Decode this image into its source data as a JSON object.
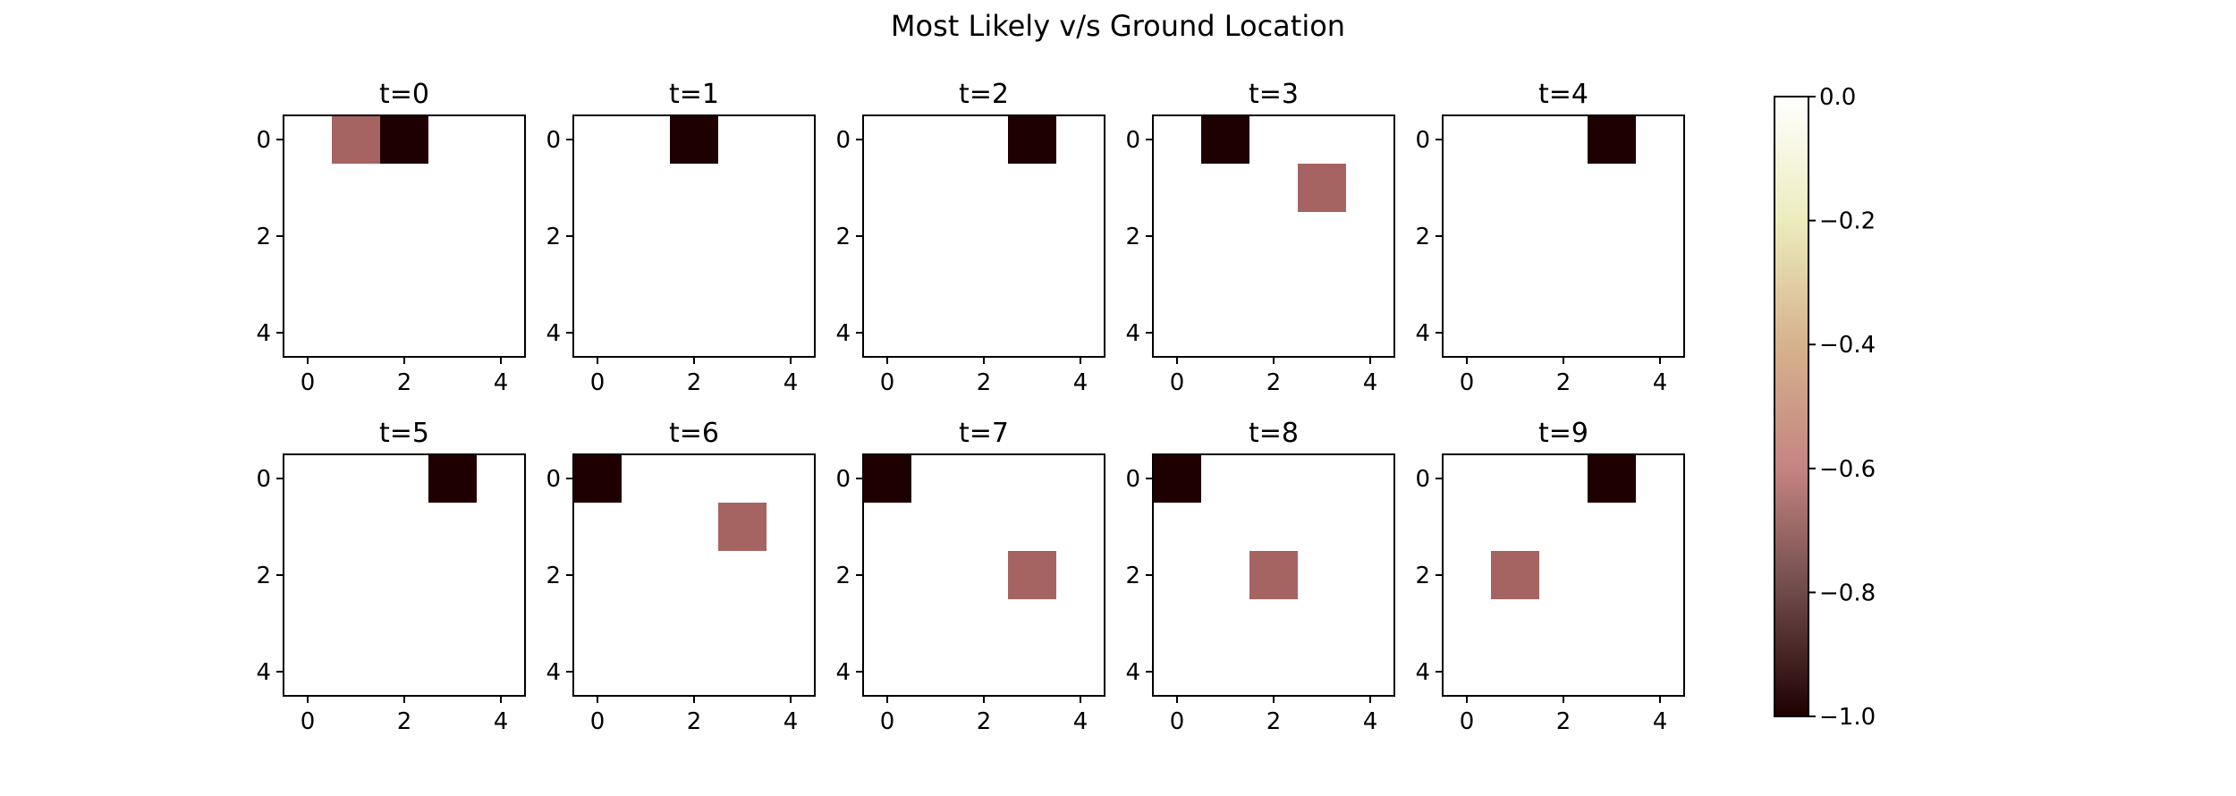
{
  "figure": {
    "suptitle": "Most Likely v/s Ground Location"
  },
  "chart_data": {
    "type": "heatmap",
    "grid_size": [
      5,
      5
    ],
    "xticks": [
      "0",
      "2",
      "4"
    ],
    "yticks": [
      "0",
      "2",
      "4"
    ],
    "colormap": "pink",
    "background_color": "#ffffff",
    "panels": [
      {
        "title": "t=0",
        "cells": [
          {
            "row": 0,
            "col": 1,
            "value": -0.7
          },
          {
            "row": 0,
            "col": 2,
            "value": -1.0
          }
        ]
      },
      {
        "title": "t=1",
        "cells": [
          {
            "row": 0,
            "col": 2,
            "value": -1.0
          }
        ]
      },
      {
        "title": "t=2",
        "cells": [
          {
            "row": 0,
            "col": 3,
            "value": -1.0
          }
        ]
      },
      {
        "title": "t=3",
        "cells": [
          {
            "row": 0,
            "col": 1,
            "value": -1.0
          },
          {
            "row": 1,
            "col": 3,
            "value": -0.7
          }
        ]
      },
      {
        "title": "t=4",
        "cells": [
          {
            "row": 0,
            "col": 3,
            "value": -1.0
          }
        ]
      },
      {
        "title": "t=5",
        "cells": [
          {
            "row": 0,
            "col": 3,
            "value": -1.0
          }
        ]
      },
      {
        "title": "t=6",
        "cells": [
          {
            "row": 0,
            "col": 0,
            "value": -1.0
          },
          {
            "row": 1,
            "col": 3,
            "value": -0.7
          }
        ]
      },
      {
        "title": "t=7",
        "cells": [
          {
            "row": 0,
            "col": 0,
            "value": -1.0
          },
          {
            "row": 2,
            "col": 3,
            "value": -0.7
          }
        ]
      },
      {
        "title": "t=8",
        "cells": [
          {
            "row": 0,
            "col": 0,
            "value": -1.0
          },
          {
            "row": 2,
            "col": 2,
            "value": -0.7
          }
        ]
      },
      {
        "title": "t=9",
        "cells": [
          {
            "row": 0,
            "col": 3,
            "value": -1.0
          },
          {
            "row": 2,
            "col": 1,
            "value": -0.7
          }
        ]
      }
    ],
    "colorbar": {
      "range": [
        -1.0,
        0.0
      ],
      "ticks": [
        "0.0",
        "−0.2",
        "−0.4",
        "−0.6",
        "−0.8",
        "−1.0"
      ],
      "tick_values": [
        0.0,
        -0.2,
        -0.4,
        -0.6,
        -0.8,
        -1.0
      ],
      "stops": [
        {
          "value": -1.0,
          "color": "#1e0000"
        },
        {
          "value": -0.8,
          "color": "#6e4a4a"
        },
        {
          "value": -0.6,
          "color": "#c48482"
        },
        {
          "value": -0.4,
          "color": "#d6b28c"
        },
        {
          "value": -0.2,
          "color": "#ececbe"
        },
        {
          "value": 0.0,
          "color": "#ffffff"
        }
      ],
      "cell_colors": {
        "-1.0": "#1e0000",
        "-0.7": "#a56462"
      }
    }
  }
}
